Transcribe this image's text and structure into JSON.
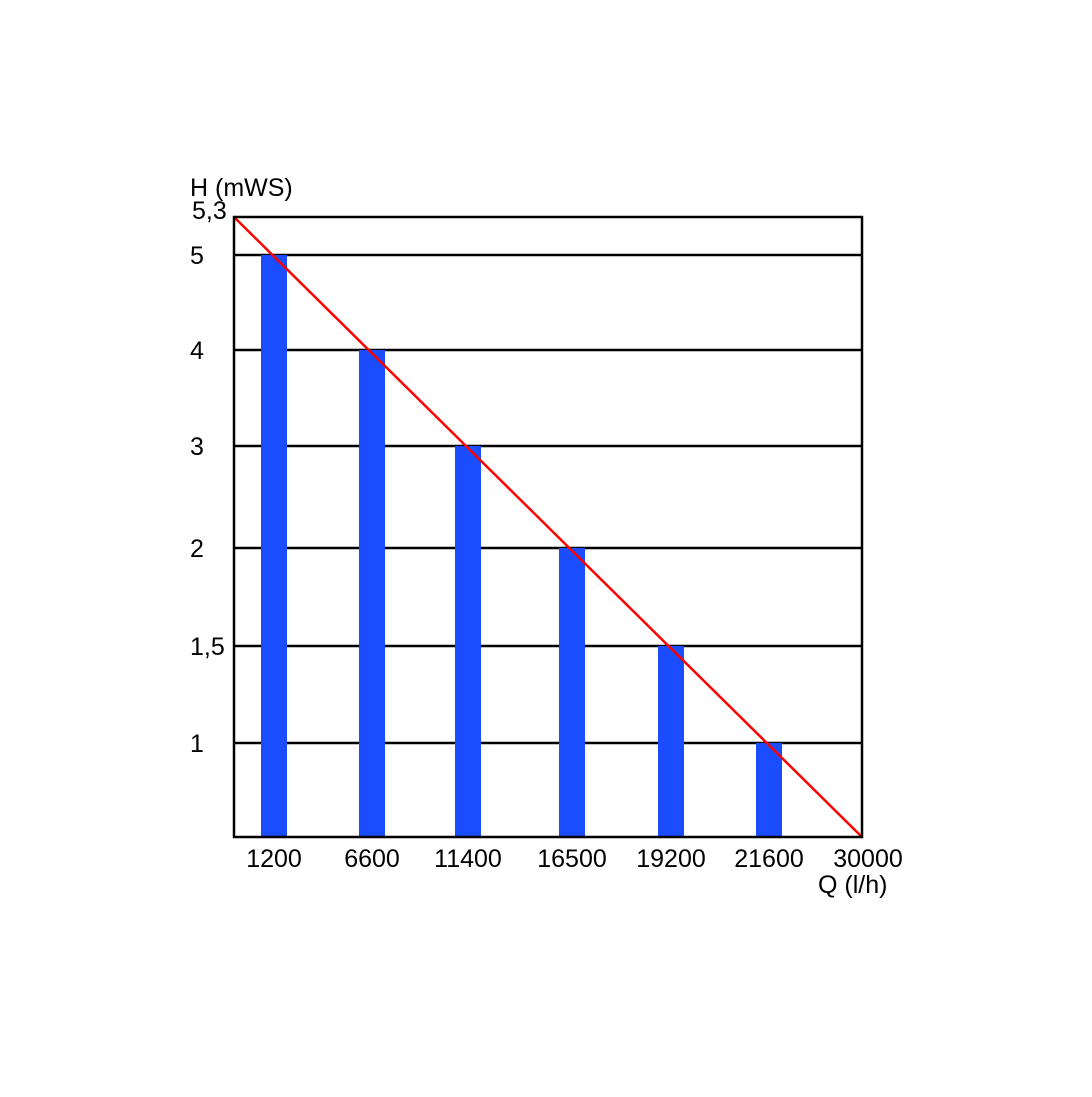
{
  "chart_data": {
    "type": "bar",
    "ylabel": "H (mWS)",
    "xlabel": "Q (l/h)",
    "categories": [
      "1200",
      "6600",
      "11400",
      "16500",
      "19200",
      "21600"
    ],
    "x_tick_labels": [
      "1200",
      "6600",
      "11400",
      "16500",
      "19200",
      "21600",
      "30000"
    ],
    "y_ticks": [
      {
        "value": 5.3,
        "label": "5,3"
      },
      {
        "value": 5,
        "label": "5"
      },
      {
        "value": 4,
        "label": "4"
      },
      {
        "value": 3,
        "label": "3"
      },
      {
        "value": 2,
        "label": "2"
      },
      {
        "value": 1.5,
        "label": "1,5"
      },
      {
        "value": 1,
        "label": "1"
      }
    ],
    "series": [
      {
        "values": [
          5,
          4,
          3,
          2,
          1.5,
          1
        ],
        "color": "#1a4dff"
      }
    ],
    "curve": {
      "start": 5.3,
      "end": 0,
      "color": "#ff0000"
    },
    "grid": true,
    "colors": {
      "bar": "#1a4dff",
      "curve": "#ff0000",
      "axis": "#000000"
    }
  }
}
